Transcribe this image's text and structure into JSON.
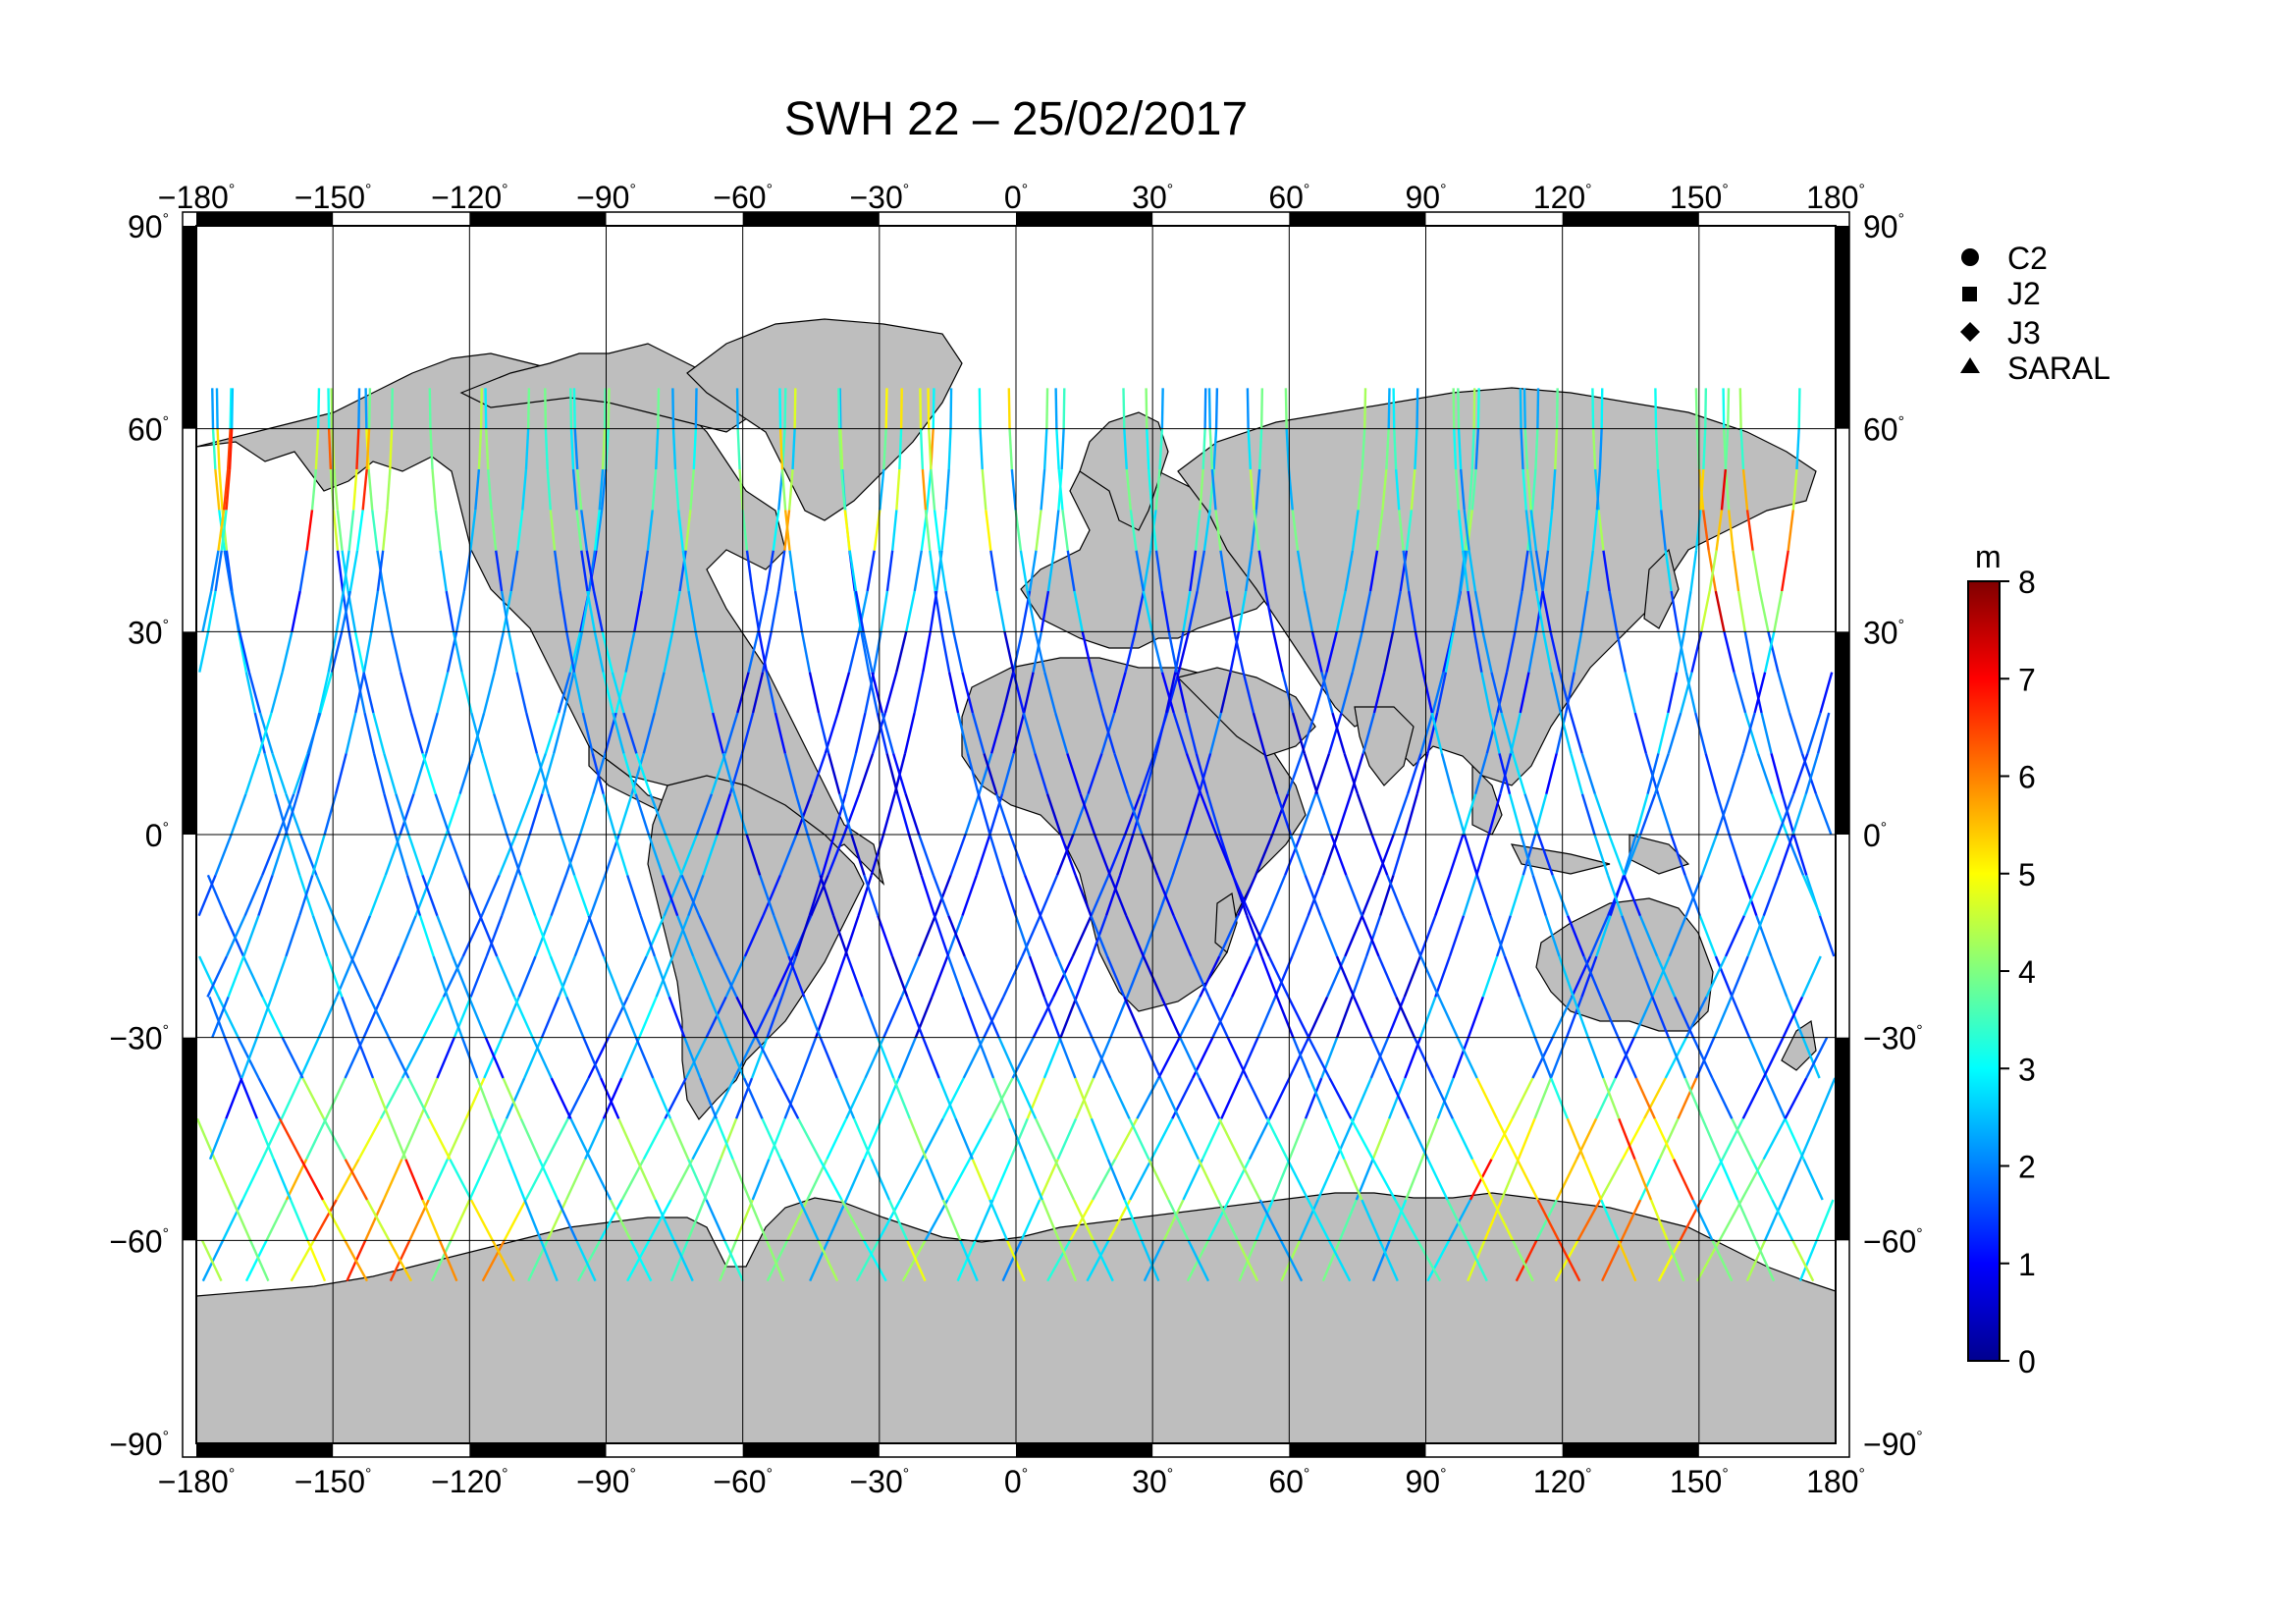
{
  "title": "SWH 22 – 25/02/2017",
  "map": {
    "projection": "equirectangular",
    "lon_range": [
      -180,
      180
    ],
    "lat_range": [
      -90,
      90
    ],
    "lon_ticks": [
      "−180",
      "−150",
      "−120",
      "−90",
      "−60",
      "−30",
      "0",
      "30",
      "60",
      "90",
      "120",
      "150",
      "180"
    ],
    "lat_ticks": [
      "90",
      "60",
      "30",
      "0",
      "−30",
      "−60",
      "−90"
    ],
    "degree_symbol": "°",
    "gridlines": true,
    "land_color": "#bebebe",
    "ocean_color": "#ffffff"
  },
  "legend": {
    "items": [
      {
        "symbol": "circle",
        "label": "C2"
      },
      {
        "symbol": "square",
        "label": "J2"
      },
      {
        "symbol": "diamond",
        "label": "J3"
      },
      {
        "symbol": "triangle",
        "label": "SARAL"
      }
    ]
  },
  "colorbar": {
    "unit": "m",
    "min": 0,
    "max": 8,
    "ticks": [
      "0",
      "1",
      "2",
      "3",
      "4",
      "5",
      "6",
      "7",
      "8"
    ],
    "colormap": [
      "#00008f",
      "#0000ff",
      "#0080ff",
      "#00ffff",
      "#80ff80",
      "#ffff00",
      "#ff8000",
      "#ff0000",
      "#800000"
    ]
  },
  "chart_data": {
    "type": "scatter",
    "title": "SWH 22 – 25/02/2017",
    "variable": "SWH",
    "unit": "m",
    "xlabel": "",
    "ylabel": "",
    "xlim": [
      -180,
      180
    ],
    "ylim": [
      -90,
      90
    ],
    "series": [
      {
        "name": "C2",
        "values": []
      },
      {
        "name": "J2",
        "values": []
      },
      {
        "name": "J3",
        "values": []
      },
      {
        "name": "SARAL",
        "values": []
      }
    ],
    "swh_regions": [
      {
        "lon_range": [
          -180,
          -130
        ],
        "lat_range": [
          40,
          60
        ],
        "swh_m": [
          3,
          7
        ]
      },
      {
        "lon_range": [
          150,
          180
        ],
        "lat_range": [
          30,
          55
        ],
        "swh_m": [
          4,
          7.5
        ]
      },
      {
        "lon_range": [
          -160,
          -110
        ],
        "lat_range": [
          -65,
          -35
        ],
        "swh_m": [
          3,
          7
        ]
      },
      {
        "lon_range": [
          100,
          150
        ],
        "lat_range": [
          -65,
          -35
        ],
        "swh_m": [
          3,
          7
        ]
      },
      {
        "lon_range": [
          -30,
          30
        ],
        "lat_range": [
          -65,
          -35
        ],
        "swh_m": [
          2,
          5
        ]
      },
      {
        "lon_range": [
          -60,
          90
        ],
        "lat_range": [
          -30,
          30
        ],
        "swh_m": [
          0.5,
          2
        ]
      },
      {
        "lon_range": [
          -180,
          -80
        ],
        "lat_range": [
          -30,
          30
        ],
        "swh_m": [
          1.5,
          3
        ]
      },
      {
        "lon_range": [
          -60,
          0
        ],
        "lat_range": [
          40,
          65
        ],
        "swh_m": [
          2,
          6
        ]
      }
    ]
  }
}
